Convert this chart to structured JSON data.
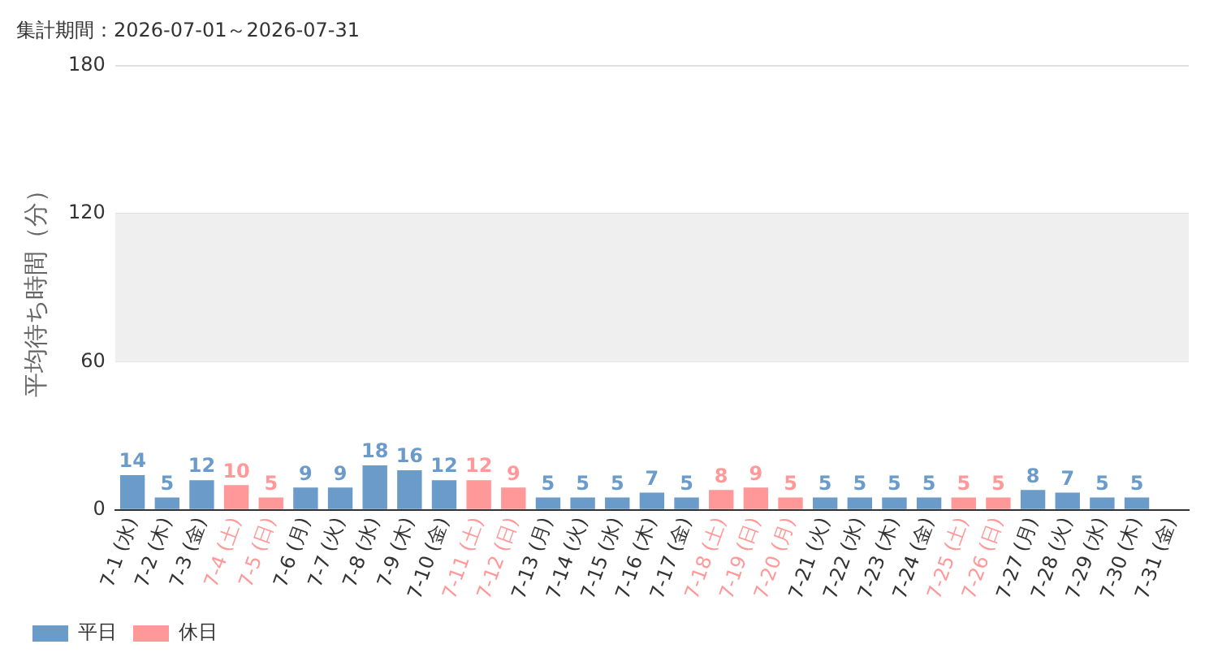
{
  "chart_data": {
    "type": "bar",
    "title": "集計期間：2026-07-01～2026-07-31",
    "ylabel": "平均待ち時間（分）",
    "categories": [
      "7-1 (水)",
      "7-2 (木)",
      "7-3 (金)",
      "7-4 (土)",
      "7-5 (日)",
      "7-6 (月)",
      "7-7 (火)",
      "7-8 (水)",
      "7-9 (木)",
      "7-10 (金)",
      "7-11 (土)",
      "7-12 (日)",
      "7-13 (月)",
      "7-14 (火)",
      "7-15 (水)",
      "7-16 (木)",
      "7-17 (金)",
      "7-18 (土)",
      "7-19 (日)",
      "7-20 (月)",
      "7-21 (火)",
      "7-22 (水)",
      "7-23 (木)",
      "7-24 (金)",
      "7-25 (土)",
      "7-26 (日)",
      "7-27 (月)",
      "7-28 (火)",
      "7-29 (水)",
      "7-30 (木)",
      "7-31 (金)"
    ],
    "stacked": true,
    "series": [
      {
        "name": "平日",
        "color": "#6b9bc8",
        "values": [
          14,
          5,
          12,
          null,
          null,
          9,
          9,
          18,
          16,
          12,
          null,
          null,
          5,
          5,
          5,
          7,
          5,
          null,
          null,
          null,
          5,
          5,
          5,
          5,
          null,
          null,
          8,
          7,
          5,
          5,
          null
        ]
      },
      {
        "name": "休日",
        "color": "#ff9999",
        "values": [
          null,
          null,
          null,
          10,
          5,
          null,
          null,
          null,
          null,
          null,
          12,
          9,
          null,
          null,
          null,
          null,
          null,
          8,
          9,
          5,
          null,
          null,
          null,
          null,
          5,
          5,
          null,
          null,
          null,
          null,
          null
        ]
      }
    ],
    "ylim": [
      0,
      180
    ],
    "yticks": [
      0,
      60,
      120,
      180
    ],
    "grid": "y",
    "legend": "bottom left",
    "data_labels": true,
    "bands": [
      {
        "axis": "y",
        "from": 60,
        "to": 120,
        "color": "#efefef"
      }
    ]
  }
}
